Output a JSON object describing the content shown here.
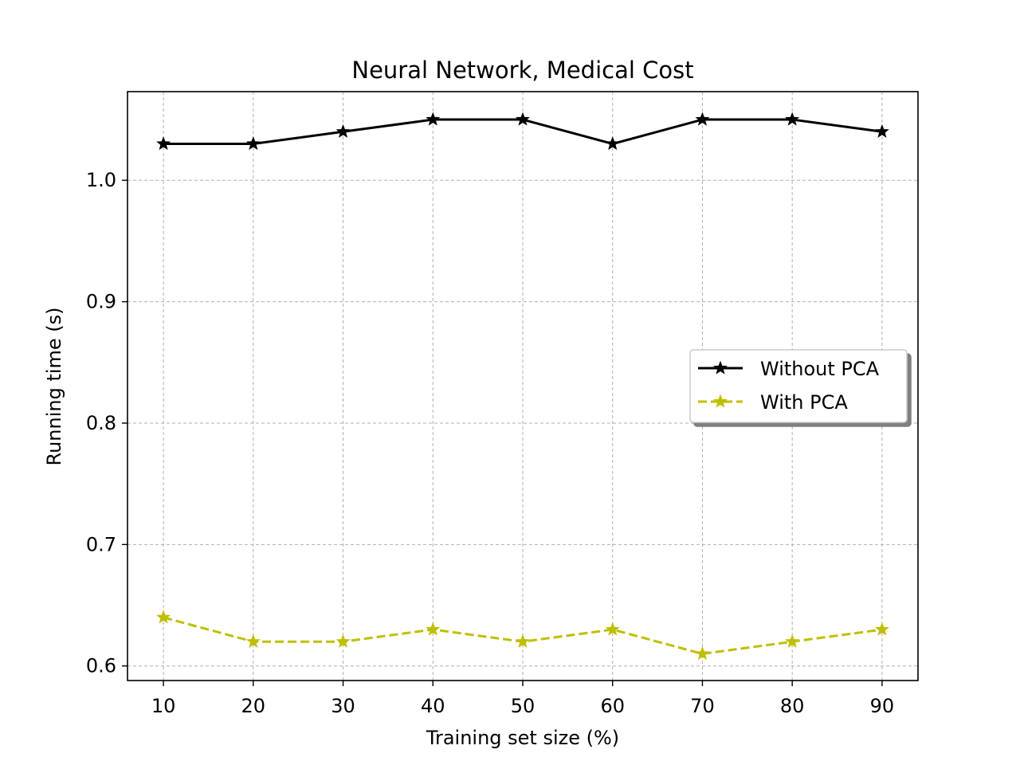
{
  "chart_data": {
    "type": "line",
    "title": "Neural Network, Medical Cost",
    "xlabel": "Training set size (%)",
    "ylabel": "Running time (s)",
    "x": [
      10,
      20,
      30,
      40,
      50,
      60,
      70,
      80,
      90
    ],
    "xticks": [
      "10",
      "20",
      "30",
      "40",
      "50",
      "60",
      "70",
      "80",
      "90"
    ],
    "yticks": [
      "0.6",
      "0.7",
      "0.8",
      "0.9",
      "1.0"
    ],
    "ytick_values": [
      0.6,
      0.7,
      0.8,
      0.9,
      1.0
    ],
    "xlim": [
      6,
      94
    ],
    "ylim": [
      0.588,
      1.073
    ],
    "grid": true,
    "legend_position": "center-right",
    "series": [
      {
        "name": "Without PCA",
        "values": [
          1.03,
          1.03,
          1.04,
          1.05,
          1.05,
          1.03,
          1.05,
          1.05,
          1.04
        ],
        "color": "#000000",
        "line_style": "solid",
        "marker": "star"
      },
      {
        "name": "With PCA",
        "values": [
          0.64,
          0.62,
          0.62,
          0.63,
          0.62,
          0.63,
          0.61,
          0.62,
          0.63
        ],
        "color": "#bfbf00",
        "line_style": "dashed",
        "marker": "star"
      }
    ]
  }
}
